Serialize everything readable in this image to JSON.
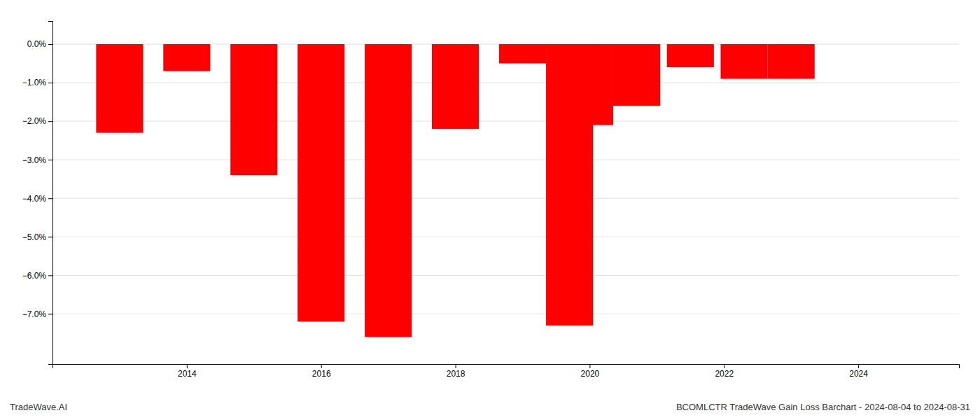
{
  "chart_data": {
    "type": "bar",
    "x": [
      2013,
      2014,
      2015,
      2016,
      2017,
      2018,
      2019,
      2019.7,
      2020,
      2020.7,
      2021.5,
      2022.3,
      2023
    ],
    "values": [
      -0.023,
      -0.007,
      -0.034,
      -0.072,
      -0.076,
      -0.022,
      -0.005,
      -0.073,
      -0.021,
      -0.016,
      -0.006,
      -0.009,
      -0.009
    ],
    "color": "#ff0000",
    "xlim": [
      2012.0,
      2025.5
    ],
    "xticks": [
      2014,
      2016,
      2018,
      2020,
      2022,
      2024
    ],
    "ylim": [
      -0.083,
      0.006
    ],
    "yticks": [
      {
        "value": 0.0,
        "label": "0.0%"
      },
      {
        "value": -0.01,
        "label": "−1.0%"
      },
      {
        "value": -0.02,
        "label": "−2.0%"
      },
      {
        "value": -0.03,
        "label": "−3.0%"
      },
      {
        "value": -0.04,
        "label": "−4.0%"
      },
      {
        "value": -0.05,
        "label": "−5.0%"
      },
      {
        "value": -0.06,
        "label": "−6.0%"
      },
      {
        "value": -0.07,
        "label": "−7.0%"
      }
    ],
    "grid": true,
    "annotations": [
      "TradeWave.AI",
      "BCOMLCTR TradeWave Gain Loss Barchart - 2024-08-04 to 2024-08-31"
    ]
  }
}
